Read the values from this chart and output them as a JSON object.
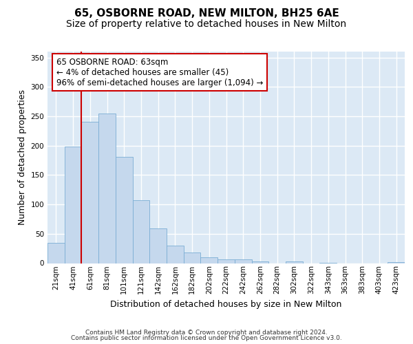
{
  "title1": "65, OSBORNE ROAD, NEW MILTON, BH25 6AE",
  "title2": "Size of property relative to detached houses in New Milton",
  "xlabel": "Distribution of detached houses by size in New Milton",
  "ylabel": "Number of detached properties",
  "footnote1": "Contains HM Land Registry data © Crown copyright and database right 2024.",
  "footnote2": "Contains public sector information licensed under the Open Government Licence v3.0.",
  "bar_labels": [
    "21sqm",
    "41sqm",
    "61sqm",
    "81sqm",
    "101sqm",
    "121sqm",
    "142sqm",
    "162sqm",
    "182sqm",
    "202sqm",
    "222sqm",
    "242sqm",
    "262sqm",
    "282sqm",
    "302sqm",
    "322sqm",
    "343sqm",
    "363sqm",
    "383sqm",
    "403sqm",
    "423sqm"
  ],
  "bar_values": [
    35,
    199,
    240,
    255,
    181,
    107,
    59,
    30,
    18,
    10,
    6,
    6,
    3,
    0,
    3,
    0,
    1,
    0,
    0,
    0,
    2
  ],
  "bar_color": "#c5d8ed",
  "bar_edge_color": "#7aadd4",
  "vline_x_index": 2.0,
  "vline_color": "#cc0000",
  "annotation_text": "65 OSBORNE ROAD: 63sqm\n← 4% of detached houses are smaller (45)\n96% of semi-detached houses are larger (1,094) →",
  "annotation_box_facecolor": "white",
  "annotation_box_edgecolor": "#cc0000",
  "ylim_max": 360,
  "yticks": [
    0,
    50,
    100,
    150,
    200,
    250,
    300,
    350
  ],
  "plot_bgcolor": "#dce9f5",
  "grid_color": "white",
  "title1_fontsize": 11,
  "title2_fontsize": 10,
  "xlabel_fontsize": 9,
  "ylabel_fontsize": 9,
  "tick_fontsize": 7.5,
  "ann_fontsize": 8.5
}
